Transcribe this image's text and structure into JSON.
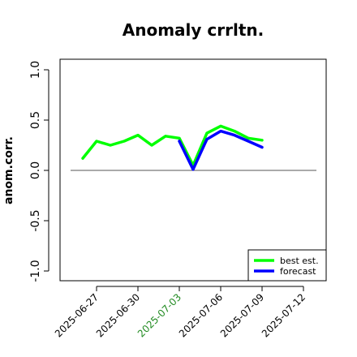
{
  "chart_data": {
    "type": "line",
    "title": "Anomaly crrltn.",
    "xlabel": "",
    "ylabel": "anom.corr.",
    "ylim": [
      -1.05,
      1.05
    ],
    "y_ticks": [
      -1.0,
      -0.5,
      0.0,
      0.5,
      1.0
    ],
    "y_tick_labels": [
      "-1.0",
      "-0.5",
      "0.0",
      "0.5",
      "1.0"
    ],
    "x_ticks": [
      "2025-06-27",
      "2025-06-30",
      "2025-07-03",
      "2025-07-06",
      "2025-07-09",
      "2025-07-12"
    ],
    "x_tick_highlight": "2025-07-03",
    "x_tick_highlight_color": "#228B22",
    "reference_line_y": 0,
    "legend_position": "bottom-right",
    "x": [
      "2025-06-26",
      "2025-06-27",
      "2025-06-28",
      "2025-06-29",
      "2025-06-30",
      "2025-07-01",
      "2025-07-02",
      "2025-07-03",
      "2025-07-04",
      "2025-07-05",
      "2025-07-06",
      "2025-07-07",
      "2025-07-08",
      "2025-07-09"
    ],
    "series": [
      {
        "name": "best est.",
        "color": "#00ff00",
        "values": [
          0.12,
          0.29,
          0.25,
          0.29,
          0.35,
          0.25,
          0.34,
          0.32,
          0.05,
          0.37,
          0.44,
          0.39,
          0.32,
          0.3
        ]
      },
      {
        "name": "forecast",
        "color": "#0000ff",
        "values": [
          null,
          null,
          null,
          null,
          null,
          null,
          null,
          0.29,
          0.01,
          0.31,
          0.39,
          0.35,
          0.29,
          0.23
        ]
      }
    ]
  }
}
